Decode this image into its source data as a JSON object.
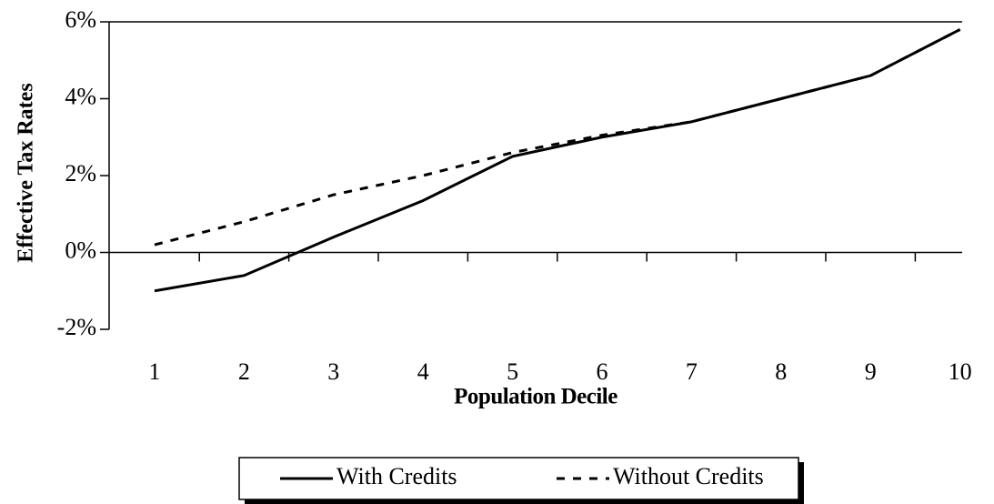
{
  "chart_data": {
    "type": "line",
    "xlabel": "Population Decile",
    "ylabel": "Effective Tax Rates",
    "categories": [
      "1",
      "2",
      "3",
      "4",
      "5",
      "6",
      "7",
      "8",
      "9",
      "10"
    ],
    "series": [
      {
        "name": "With Credits",
        "color": "#000000",
        "dash": "solid",
        "values": [
          -1.0,
          -0.6,
          0.4,
          1.35,
          2.5,
          3.0,
          3.4,
          4.0,
          4.6,
          5.8
        ]
      },
      {
        "name": "Without Credits",
        "color": "#000000",
        "dash": "dashed",
        "values": [
          0.2,
          0.8,
          1.5,
          2.0,
          2.6,
          3.05,
          3.4,
          4.0,
          4.6,
          5.8
        ]
      }
    ],
    "ylim": [
      -2,
      6
    ],
    "yticks": [
      {
        "value": -2,
        "label": "-2%"
      },
      {
        "value": 0,
        "label": "0%"
      },
      {
        "value": 2,
        "label": "2%"
      },
      {
        "value": 4,
        "label": "4%"
      },
      {
        "value": 6,
        "label": "6%"
      }
    ],
    "legend": "bottom"
  }
}
